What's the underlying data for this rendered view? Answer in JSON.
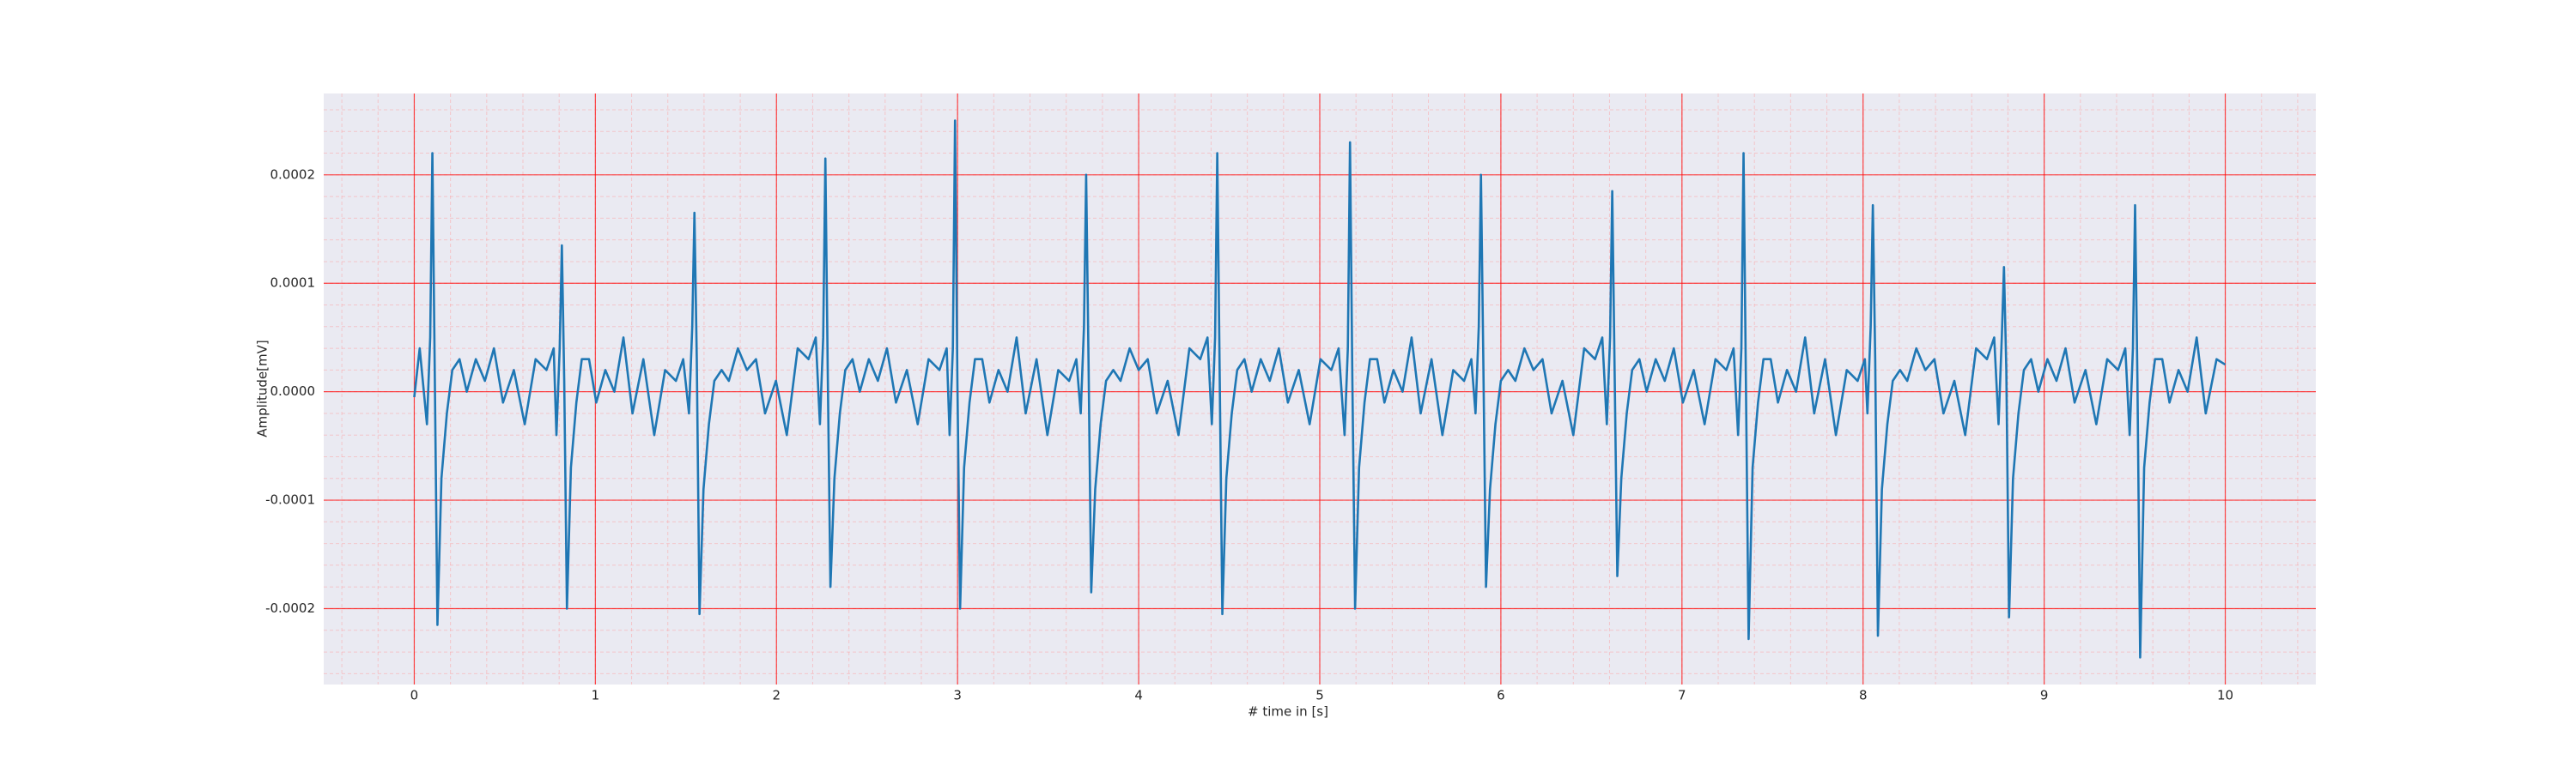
{
  "chart_data": {
    "type": "line",
    "xlabel": "# time in [s]",
    "ylabel": "Amplitude[mV]",
    "xlim": [
      -0.5,
      10.5
    ],
    "ylim": [
      -0.00027,
      0.000275
    ],
    "xticks": [
      0,
      1,
      2,
      3,
      4,
      5,
      6,
      7,
      8,
      9,
      10
    ],
    "yticks": [
      -0.0002,
      -0.0001,
      {
        "value": 0,
        "label": "0.0000"
      },
      0.0001,
      0.0002
    ],
    "grid": true,
    "minor_grid": true,
    "minor_grid_divisions": 5,
    "series": [
      {
        "color": "#1f77b4",
        "x": [
          0,
          0.03,
          0.07,
          0.088,
          0.1,
          0.113,
          0.128,
          0.15,
          0.18,
          0.21,
          0.25,
          0.29,
          0.34,
          0.39,
          0.44,
          0.49,
          0.55,
          0.61,
          0.67,
          0.73,
          0.77,
          0.785,
          0.803,
          0.815,
          0.828,
          0.843,
          0.865,
          0.895,
          0.925,
          0.965,
          1.005,
          1.055,
          1.105,
          1.155,
          1.205,
          1.265,
          1.325,
          1.385,
          1.445,
          1.485,
          1.517,
          1.535,
          1.547,
          1.56,
          1.575,
          1.597,
          1.627,
          1.657,
          1.697,
          1.737,
          1.787,
          1.837,
          1.887,
          1.937,
          1.997,
          2.057,
          2.117,
          2.177,
          2.217,
          2.24,
          2.258,
          2.27,
          2.283,
          2.298,
          2.32,
          2.35,
          2.38,
          2.42,
          2.46,
          2.51,
          2.56,
          2.61,
          2.66,
          2.72,
          2.78,
          2.84,
          2.9,
          2.94,
          2.956,
          2.974,
          2.986,
          2.999,
          3.014,
          3.036,
          3.066,
          3.096,
          3.136,
          3.176,
          3.226,
          3.276,
          3.326,
          3.376,
          3.436,
          3.496,
          3.556,
          3.616,
          3.656,
          3.68,
          3.698,
          3.71,
          3.723,
          3.738,
          3.76,
          3.79,
          3.82,
          3.86,
          3.9,
          3.95,
          4.0,
          4.05,
          4.1,
          4.16,
          4.22,
          4.28,
          4.34,
          4.38,
          4.404,
          4.422,
          4.434,
          4.447,
          4.462,
          4.484,
          4.514,
          4.544,
          4.584,
          4.624,
          4.674,
          4.724,
          4.774,
          4.824,
          4.884,
          4.944,
          5.004,
          5.064,
          5.104,
          5.137,
          5.155,
          5.167,
          5.18,
          5.195,
          5.217,
          5.247,
          5.277,
          5.317,
          5.357,
          5.407,
          5.457,
          5.507,
          5.557,
          5.617,
          5.677,
          5.737,
          5.797,
          5.837,
          5.86,
          5.878,
          5.89,
          5.903,
          5.918,
          5.94,
          5.97,
          6.0,
          6.04,
          6.08,
          6.13,
          6.18,
          6.23,
          6.28,
          6.34,
          6.4,
          6.46,
          6.52,
          6.56,
          6.585,
          6.603,
          6.615,
          6.628,
          6.643,
          6.665,
          6.695,
          6.725,
          6.765,
          6.805,
          6.855,
          6.905,
          6.955,
          7.005,
          7.065,
          7.125,
          7.185,
          7.245,
          7.285,
          7.31,
          7.328,
          7.34,
          7.353,
          7.368,
          7.39,
          7.42,
          7.45,
          7.49,
          7.53,
          7.58,
          7.63,
          7.68,
          7.73,
          7.79,
          7.85,
          7.91,
          7.97,
          8.01,
          8.024,
          8.042,
          8.054,
          8.067,
          8.082,
          8.104,
          8.134,
          8.164,
          8.204,
          8.244,
          8.294,
          8.344,
          8.394,
          8.444,
          8.504,
          8.564,
          8.624,
          8.684,
          8.724,
          8.748,
          8.766,
          8.778,
          8.791,
          8.806,
          8.828,
          8.858,
          8.888,
          8.928,
          8.968,
          9.018,
          9.068,
          9.118,
          9.168,
          9.228,
          9.288,
          9.348,
          9.408,
          9.448,
          9.472,
          9.49,
          9.502,
          9.515,
          9.53,
          9.552,
          9.582,
          9.612,
          9.652,
          9.692,
          9.742,
          9.792,
          9.842,
          9.892,
          9.952,
          10.0
        ],
        "values": [
          -5e-06,
          4e-05,
          -3e-05,
          5e-05,
          0.00022,
          2e-05,
          -0.000215,
          -8e-05,
          -2e-05,
          2e-05,
          3e-05,
          0,
          3e-05,
          1e-05,
          4e-05,
          -1e-05,
          2e-05,
          -3e-05,
          3e-05,
          2e-05,
          4e-05,
          -4e-05,
          4e-05,
          0.000135,
          1e-05,
          -0.0002,
          -7e-05,
          -1e-05,
          3e-05,
          3e-05,
          -1e-05,
          2e-05,
          0,
          5e-05,
          -2e-05,
          3e-05,
          -4e-05,
          2e-05,
          1e-05,
          3e-05,
          -2e-05,
          6e-05,
          0.000165,
          3e-05,
          -0.000205,
          -9e-05,
          -3e-05,
          1e-05,
          2e-05,
          1e-05,
          4e-05,
          2e-05,
          3e-05,
          -2e-05,
          1e-05,
          -4e-05,
          4e-05,
          3e-05,
          5e-05,
          -3e-05,
          5e-05,
          0.000215,
          2e-05,
          -0.00018,
          -8e-05,
          -2e-05,
          2e-05,
          3e-05,
          0,
          3e-05,
          1e-05,
          4e-05,
          -1e-05,
          2e-05,
          -3e-05,
          3e-05,
          2e-05,
          4e-05,
          -4e-05,
          4e-05,
          0.00025,
          1e-05,
          -0.0002,
          -7e-05,
          -1e-05,
          3e-05,
          3e-05,
          -1e-05,
          2e-05,
          0,
          5e-05,
          -2e-05,
          3e-05,
          -4e-05,
          2e-05,
          1e-05,
          3e-05,
          -2e-05,
          6e-05,
          0.0002,
          3e-05,
          -0.000185,
          -9e-05,
          -3e-05,
          1e-05,
          2e-05,
          1e-05,
          4e-05,
          2e-05,
          3e-05,
          -2e-05,
          1e-05,
          -4e-05,
          4e-05,
          3e-05,
          5e-05,
          -3e-05,
          5e-05,
          0.00022,
          2e-05,
          -0.000205,
          -8e-05,
          -2e-05,
          2e-05,
          3e-05,
          0,
          3e-05,
          1e-05,
          4e-05,
          -1e-05,
          2e-05,
          -3e-05,
          3e-05,
          2e-05,
          4e-05,
          -4e-05,
          4e-05,
          0.00023,
          1e-05,
          -0.0002,
          -7e-05,
          -1e-05,
          3e-05,
          3e-05,
          -1e-05,
          2e-05,
          0,
          5e-05,
          -2e-05,
          3e-05,
          -4e-05,
          2e-05,
          1e-05,
          3e-05,
          -2e-05,
          6e-05,
          0.0002,
          3e-05,
          -0.00018,
          -9e-05,
          -3e-05,
          1e-05,
          2e-05,
          1e-05,
          4e-05,
          2e-05,
          3e-05,
          -2e-05,
          1e-05,
          -4e-05,
          4e-05,
          3e-05,
          5e-05,
          -3e-05,
          5e-05,
          0.000185,
          2e-05,
          -0.00017,
          -8e-05,
          -2e-05,
          2e-05,
          3e-05,
          0,
          3e-05,
          1e-05,
          4e-05,
          -1e-05,
          2e-05,
          -3e-05,
          3e-05,
          2e-05,
          4e-05,
          -4e-05,
          4e-05,
          0.00022,
          1e-05,
          -0.000228,
          -7e-05,
          -1e-05,
          3e-05,
          3e-05,
          -1e-05,
          2e-05,
          0,
          5e-05,
          -2e-05,
          3e-05,
          -4e-05,
          2e-05,
          1e-05,
          3e-05,
          -2e-05,
          6e-05,
          0.000172,
          3e-05,
          -0.000225,
          -9e-05,
          -3e-05,
          1e-05,
          2e-05,
          1e-05,
          4e-05,
          2e-05,
          3e-05,
          -2e-05,
          1e-05,
          -4e-05,
          4e-05,
          3e-05,
          5e-05,
          -3e-05,
          5e-05,
          0.000115,
          2e-05,
          -0.000208,
          -8e-05,
          -2e-05,
          2e-05,
          3e-05,
          0,
          3e-05,
          1e-05,
          4e-05,
          -1e-05,
          2e-05,
          -3e-05,
          3e-05,
          2e-05,
          4e-05,
          -4e-05,
          4e-05,
          0.000172,
          1e-05,
          -0.000245,
          -7e-05,
          -1e-05,
          3e-05,
          3e-05,
          -1e-05,
          2e-05,
          0,
          5e-05,
          -2e-05,
          3e-05,
          2.5e-05
        ]
      }
    ]
  }
}
